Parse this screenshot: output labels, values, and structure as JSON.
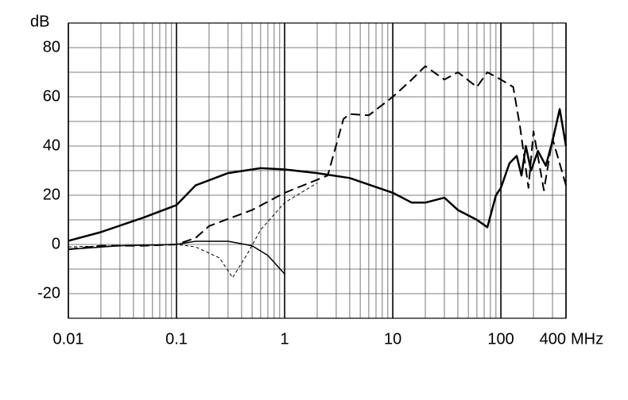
{
  "chart_data": {
    "type": "line",
    "y_unit": "dB",
    "x_unit": "MHz",
    "log_x": true,
    "grid": true,
    "xlim": [
      0.01,
      400
    ],
    "ylim": [
      -30,
      90
    ],
    "xticks": [
      0.01,
      0.1,
      1,
      10,
      100,
      400
    ],
    "minor_xticks": [
      0.02,
      0.03,
      0.04,
      0.05,
      0.06,
      0.07,
      0.08,
      0.09,
      0.2,
      0.3,
      0.4,
      0.5,
      0.6,
      0.7,
      0.8,
      0.9,
      2,
      3,
      4,
      5,
      6,
      7,
      8,
      9,
      20,
      30,
      40,
      50,
      60,
      70,
      80,
      90,
      200,
      300
    ],
    "yticks": [
      -20,
      0,
      20,
      40,
      60,
      80
    ],
    "minor_yticks": [
      -10,
      10,
      30,
      50,
      70
    ],
    "series": [
      {
        "color": "#000000",
        "dash": "solid",
        "width": 2.5,
        "x": [
          0.01,
          0.02,
          0.05,
          0.1,
          0.15,
          0.3,
          0.6,
          1,
          2,
          4,
          10,
          15,
          20,
          30,
          40,
          60,
          75,
          90,
          100,
          120,
          140,
          155,
          170,
          190,
          220,
          260,
          300,
          350,
          400
        ],
        "values": [
          1.5,
          5,
          11,
          16,
          24,
          29,
          31,
          30.5,
          29,
          27,
          21,
          17,
          17,
          19,
          14,
          10,
          7,
          20,
          23,
          33,
          36,
          28,
          40,
          30,
          38,
          32,
          42,
          55,
          40
        ]
      },
      {
        "color": "#000000",
        "dash": "long",
        "width": 2,
        "x": [
          0.01,
          0.02,
          0.05,
          0.1,
          0.15,
          0.2,
          0.5,
          1,
          2.5,
          3.5,
          4,
          6,
          10,
          15,
          20,
          30,
          40,
          60,
          75,
          100,
          130,
          150,
          180,
          200,
          250,
          300,
          400
        ],
        "values": [
          -2,
          -0.5,
          -0.5,
          0,
          2.6,
          7.5,
          14,
          21,
          28,
          51,
          53,
          52.5,
          60,
          67,
          72.5,
          67,
          70,
          64,
          70,
          67,
          64,
          48,
          23,
          46,
          22,
          43,
          24
        ]
      },
      {
        "color": "#000000",
        "dash": "short",
        "width": 1,
        "x": [
          0.01,
          0.03,
          0.1,
          0.15,
          0.25,
          0.33,
          0.45,
          0.6,
          1,
          2
        ],
        "values": [
          -1,
          -0.5,
          0,
          -1,
          -5.5,
          -13.5,
          -4,
          6,
          17,
          25
        ]
      },
      {
        "color": "#000000",
        "dash": "solid",
        "width": 1.5,
        "x": [
          0.01,
          0.03,
          0.1,
          0.15,
          0.3,
          0.5,
          0.7,
          1
        ],
        "values": [
          -2,
          -0.5,
          0,
          1.3,
          1.3,
          -0.5,
          -4.5,
          -12
        ]
      }
    ]
  }
}
